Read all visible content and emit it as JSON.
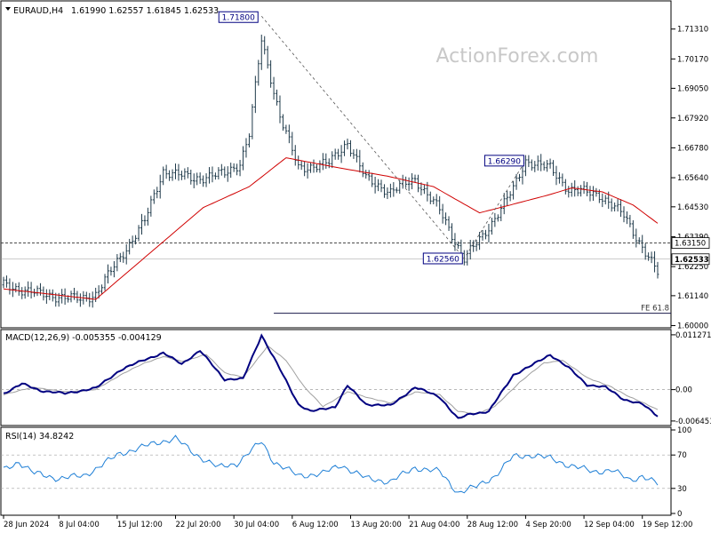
{
  "chart_data": [
    {
      "type": "candlestick",
      "title": "EURAUD,H4",
      "ohlc_label": "1.61990 1.62557 1.61845 1.62533",
      "watermark": "ActionForex.com",
      "ylim": [
        1.5995,
        1.7235
      ],
      "y_ticks": [
        "1.71310",
        "1.70170",
        "1.69050",
        "1.67920",
        "1.66780",
        "1.65640",
        "1.64530",
        "1.63390",
        "1.62250",
        "1.61140",
        "1.60000"
      ],
      "price_key": [
        {
          "x": 0,
          "y": 1.6155
        },
        {
          "x": 12,
          "y": 1.612
        },
        {
          "x": 25,
          "y": 1.61
        },
        {
          "x": 30,
          "y": 1.612
        },
        {
          "x": 38,
          "y": 1.626
        },
        {
          "x": 46,
          "y": 1.64
        },
        {
          "x": 52,
          "y": 1.659
        },
        {
          "x": 62,
          "y": 1.656
        },
        {
          "x": 72,
          "y": 1.658
        },
        {
          "x": 77,
          "y": 1.662
        },
        {
          "x": 80,
          "y": 1.673
        },
        {
          "x": 84,
          "y": 1.709
        },
        {
          "x": 90,
          "y": 1.68
        },
        {
          "x": 96,
          "y": 1.66
        },
        {
          "x": 106,
          "y": 1.662
        },
        {
          "x": 112,
          "y": 1.67
        },
        {
          "x": 118,
          "y": 1.656
        },
        {
          "x": 126,
          "y": 1.651
        },
        {
          "x": 134,
          "y": 1.656
        },
        {
          "x": 142,
          "y": 1.644
        },
        {
          "x": 148,
          "y": 1.63
        },
        {
          "x": 150,
          "y": 1.6256
        },
        {
          "x": 156,
          "y": 1.634
        },
        {
          "x": 166,
          "y": 1.652
        },
        {
          "x": 170,
          "y": 1.6629
        },
        {
          "x": 178,
          "y": 1.66
        },
        {
          "x": 184,
          "y": 1.652
        },
        {
          "x": 194,
          "y": 1.65
        },
        {
          "x": 202,
          "y": 1.642
        },
        {
          "x": 208,
          "y": 1.63
        },
        {
          "x": 213,
          "y": 1.62
        }
      ],
      "ma_key": [
        {
          "x": 0,
          "y": 1.614
        },
        {
          "x": 30,
          "y": 1.61
        },
        {
          "x": 50,
          "y": 1.63
        },
        {
          "x": 65,
          "y": 1.645
        },
        {
          "x": 80,
          "y": 1.653
        },
        {
          "x": 92,
          "y": 1.664
        },
        {
          "x": 110,
          "y": 1.66
        },
        {
          "x": 125,
          "y": 1.657
        },
        {
          "x": 140,
          "y": 1.653
        },
        {
          "x": 155,
          "y": 1.643
        },
        {
          "x": 165,
          "y": 1.646
        },
        {
          "x": 178,
          "y": 1.65
        },
        {
          "x": 185,
          "y": 1.6525
        },
        {
          "x": 195,
          "y": 1.651
        },
        {
          "x": 205,
          "y": 1.646
        },
        {
          "x": 213,
          "y": 1.639
        }
      ],
      "annotations": [
        {
          "label": "1.71800",
          "x": 84,
          "y": 1.718
        },
        {
          "label": "1.62560",
          "x": 150,
          "y": 1.6256
        },
        {
          "label": "1.66290",
          "x": 170,
          "y": 1.6629
        }
      ],
      "trendline": [
        {
          "x": 84,
          "y": 1.718
        },
        {
          "x": 150,
          "y": 1.6256
        },
        {
          "x": 170,
          "y": 1.6629
        }
      ],
      "level": {
        "label": "1.63150",
        "y": 1.6315
      },
      "current_price": {
        "label": "1.62533",
        "y": 1.62533
      },
      "fe_level": {
        "label": "FE 61.8",
        "y": 1.6047,
        "x_start": 88
      }
    },
    {
      "type": "line",
      "title": "MACD(12,26,9) -0.005355 -0.004129",
      "ylim": [
        -0.0072,
        0.0118
      ],
      "y_ticks": [
        {
          "label": "0.011271",
          "value": 0.011271
        },
        {
          "label": "0.00",
          "value": 0.0
        },
        {
          "label": "-0.006453",
          "value": -0.006453
        }
      ],
      "series": [
        {
          "key": [
            {
              "x": 0,
              "y": -0.0008
            },
            {
              "x": 6,
              "y": 0.0012
            },
            {
              "x": 12,
              "y": -0.0002
            },
            {
              "x": 20,
              "y": -0.0008
            },
            {
              "x": 30,
              "y": 0.0003
            },
            {
              "x": 38,
              "y": 0.004
            },
            {
              "x": 46,
              "y": 0.0062
            },
            {
              "x": 52,
              "y": 0.0075
            },
            {
              "x": 58,
              "y": 0.0053
            },
            {
              "x": 64,
              "y": 0.008
            },
            {
              "x": 72,
              "y": 0.0021
            },
            {
              "x": 78,
              "y": 0.0022
            },
            {
              "x": 84,
              "y": 0.0112
            },
            {
              "x": 90,
              "y": 0.0042
            },
            {
              "x": 96,
              "y": -0.003
            },
            {
              "x": 100,
              "y": -0.0045
            },
            {
              "x": 108,
              "y": -0.0035
            },
            {
              "x": 112,
              "y": 0.0008
            },
            {
              "x": 118,
              "y": -0.003
            },
            {
              "x": 126,
              "y": -0.0033
            },
            {
              "x": 134,
              "y": 0.0005
            },
            {
              "x": 142,
              "y": -0.0015
            },
            {
              "x": 148,
              "y": -0.006
            },
            {
              "x": 152,
              "y": -0.005
            },
            {
              "x": 158,
              "y": -0.0045
            },
            {
              "x": 166,
              "y": 0.003
            },
            {
              "x": 172,
              "y": 0.005
            },
            {
              "x": 178,
              "y": 0.0072
            },
            {
              "x": 184,
              "y": 0.0045
            },
            {
              "x": 190,
              "y": 0.001
            },
            {
              "x": 196,
              "y": 0.0005
            },
            {
              "x": 202,
              "y": -0.002
            },
            {
              "x": 208,
              "y": -0.003
            },
            {
              "x": 213,
              "y": -0.0054
            }
          ]
        },
        {
          "key": [
            {
              "x": 0,
              "y": -0.001
            },
            {
              "x": 10,
              "y": 0.0005
            },
            {
              "x": 20,
              "y": -0.0005
            },
            {
              "x": 30,
              "y": 0.0
            },
            {
              "x": 38,
              "y": 0.003
            },
            {
              "x": 46,
              "y": 0.0055
            },
            {
              "x": 52,
              "y": 0.0068
            },
            {
              "x": 58,
              "y": 0.0058
            },
            {
              "x": 66,
              "y": 0.0072
            },
            {
              "x": 72,
              "y": 0.0035
            },
            {
              "x": 78,
              "y": 0.0025
            },
            {
              "x": 86,
              "y": 0.009
            },
            {
              "x": 92,
              "y": 0.006
            },
            {
              "x": 98,
              "y": 0.0005
            },
            {
              "x": 104,
              "y": -0.0035
            },
            {
              "x": 112,
              "y": -0.0005
            },
            {
              "x": 118,
              "y": -0.0015
            },
            {
              "x": 126,
              "y": -0.0028
            },
            {
              "x": 134,
              "y": -0.0005
            },
            {
              "x": 142,
              "y": -0.001
            },
            {
              "x": 148,
              "y": -0.0045
            },
            {
              "x": 154,
              "y": -0.005
            },
            {
              "x": 160,
              "y": -0.0035
            },
            {
              "x": 168,
              "y": 0.0015
            },
            {
              "x": 176,
              "y": 0.0055
            },
            {
              "x": 182,
              "y": 0.006
            },
            {
              "x": 190,
              "y": 0.0025
            },
            {
              "x": 198,
              "y": 0.0005
            },
            {
              "x": 204,
              "y": -0.0015
            },
            {
              "x": 213,
              "y": -0.0041
            }
          ]
        }
      ]
    },
    {
      "type": "line",
      "title": "RSI(14) 34.8242",
      "ylim": [
        0,
        100
      ],
      "y_ticks": [
        {
          "label": "100",
          "value": 100
        },
        {
          "label": "70",
          "value": 70
        },
        {
          "label": "30",
          "value": 30
        },
        {
          "label": "0",
          "value": 0
        }
      ],
      "key": [
        {
          "x": 0,
          "y": 52
        },
        {
          "x": 5,
          "y": 62
        },
        {
          "x": 10,
          "y": 48
        },
        {
          "x": 18,
          "y": 42
        },
        {
          "x": 26,
          "y": 45
        },
        {
          "x": 32,
          "y": 58
        },
        {
          "x": 38,
          "y": 72
        },
        {
          "x": 44,
          "y": 78
        },
        {
          "x": 50,
          "y": 85
        },
        {
          "x": 56,
          "y": 90
        },
        {
          "x": 62,
          "y": 72
        },
        {
          "x": 70,
          "y": 55
        },
        {
          "x": 76,
          "y": 60
        },
        {
          "x": 84,
          "y": 86
        },
        {
          "x": 88,
          "y": 62
        },
        {
          "x": 96,
          "y": 45
        },
        {
          "x": 104,
          "y": 48
        },
        {
          "x": 110,
          "y": 58
        },
        {
          "x": 118,
          "y": 42
        },
        {
          "x": 126,
          "y": 38
        },
        {
          "x": 134,
          "y": 55
        },
        {
          "x": 142,
          "y": 50
        },
        {
          "x": 148,
          "y": 25
        },
        {
          "x": 154,
          "y": 32
        },
        {
          "x": 160,
          "y": 45
        },
        {
          "x": 166,
          "y": 68
        },
        {
          "x": 172,
          "y": 70
        },
        {
          "x": 178,
          "y": 66
        },
        {
          "x": 184,
          "y": 58
        },
        {
          "x": 192,
          "y": 50
        },
        {
          "x": 198,
          "y": 52
        },
        {
          "x": 204,
          "y": 40
        },
        {
          "x": 208,
          "y": 45
        },
        {
          "x": 213,
          "y": 35
        }
      ]
    }
  ],
  "x_axis": {
    "bar_count": 214,
    "labels": [
      {
        "label": "28 Jun 2024",
        "x": 0
      },
      {
        "label": "8 Jul 04:00",
        "x": 18
      },
      {
        "label": "15 Jul 12:00",
        "x": 37
      },
      {
        "label": "22 Jul 20:00",
        "x": 56
      },
      {
        "label": "30 Jul 04:00",
        "x": 75
      },
      {
        "label": "6 Aug 12:00",
        "x": 94
      },
      {
        "label": "13 Aug 20:00",
        "x": 113
      },
      {
        "label": "21 Aug 04:00",
        "x": 132
      },
      {
        "label": "28 Aug 12:00",
        "x": 151
      },
      {
        "label": "4 Sep 20:00",
        "x": 170
      },
      {
        "label": "12 Sep 04:00",
        "x": 189
      },
      {
        "label": "19 Sep 12:00",
        "x": 208
      }
    ]
  },
  "colors": {
    "candles": "#1f3a4a",
    "ma": "#d00000",
    "macd": "#000080",
    "signal": "#a0a0a0",
    "rsi": "#1e7fd6",
    "grid": "#a0a0a0",
    "label_border": "#000080",
    "watermark": "#c8c8c8"
  }
}
